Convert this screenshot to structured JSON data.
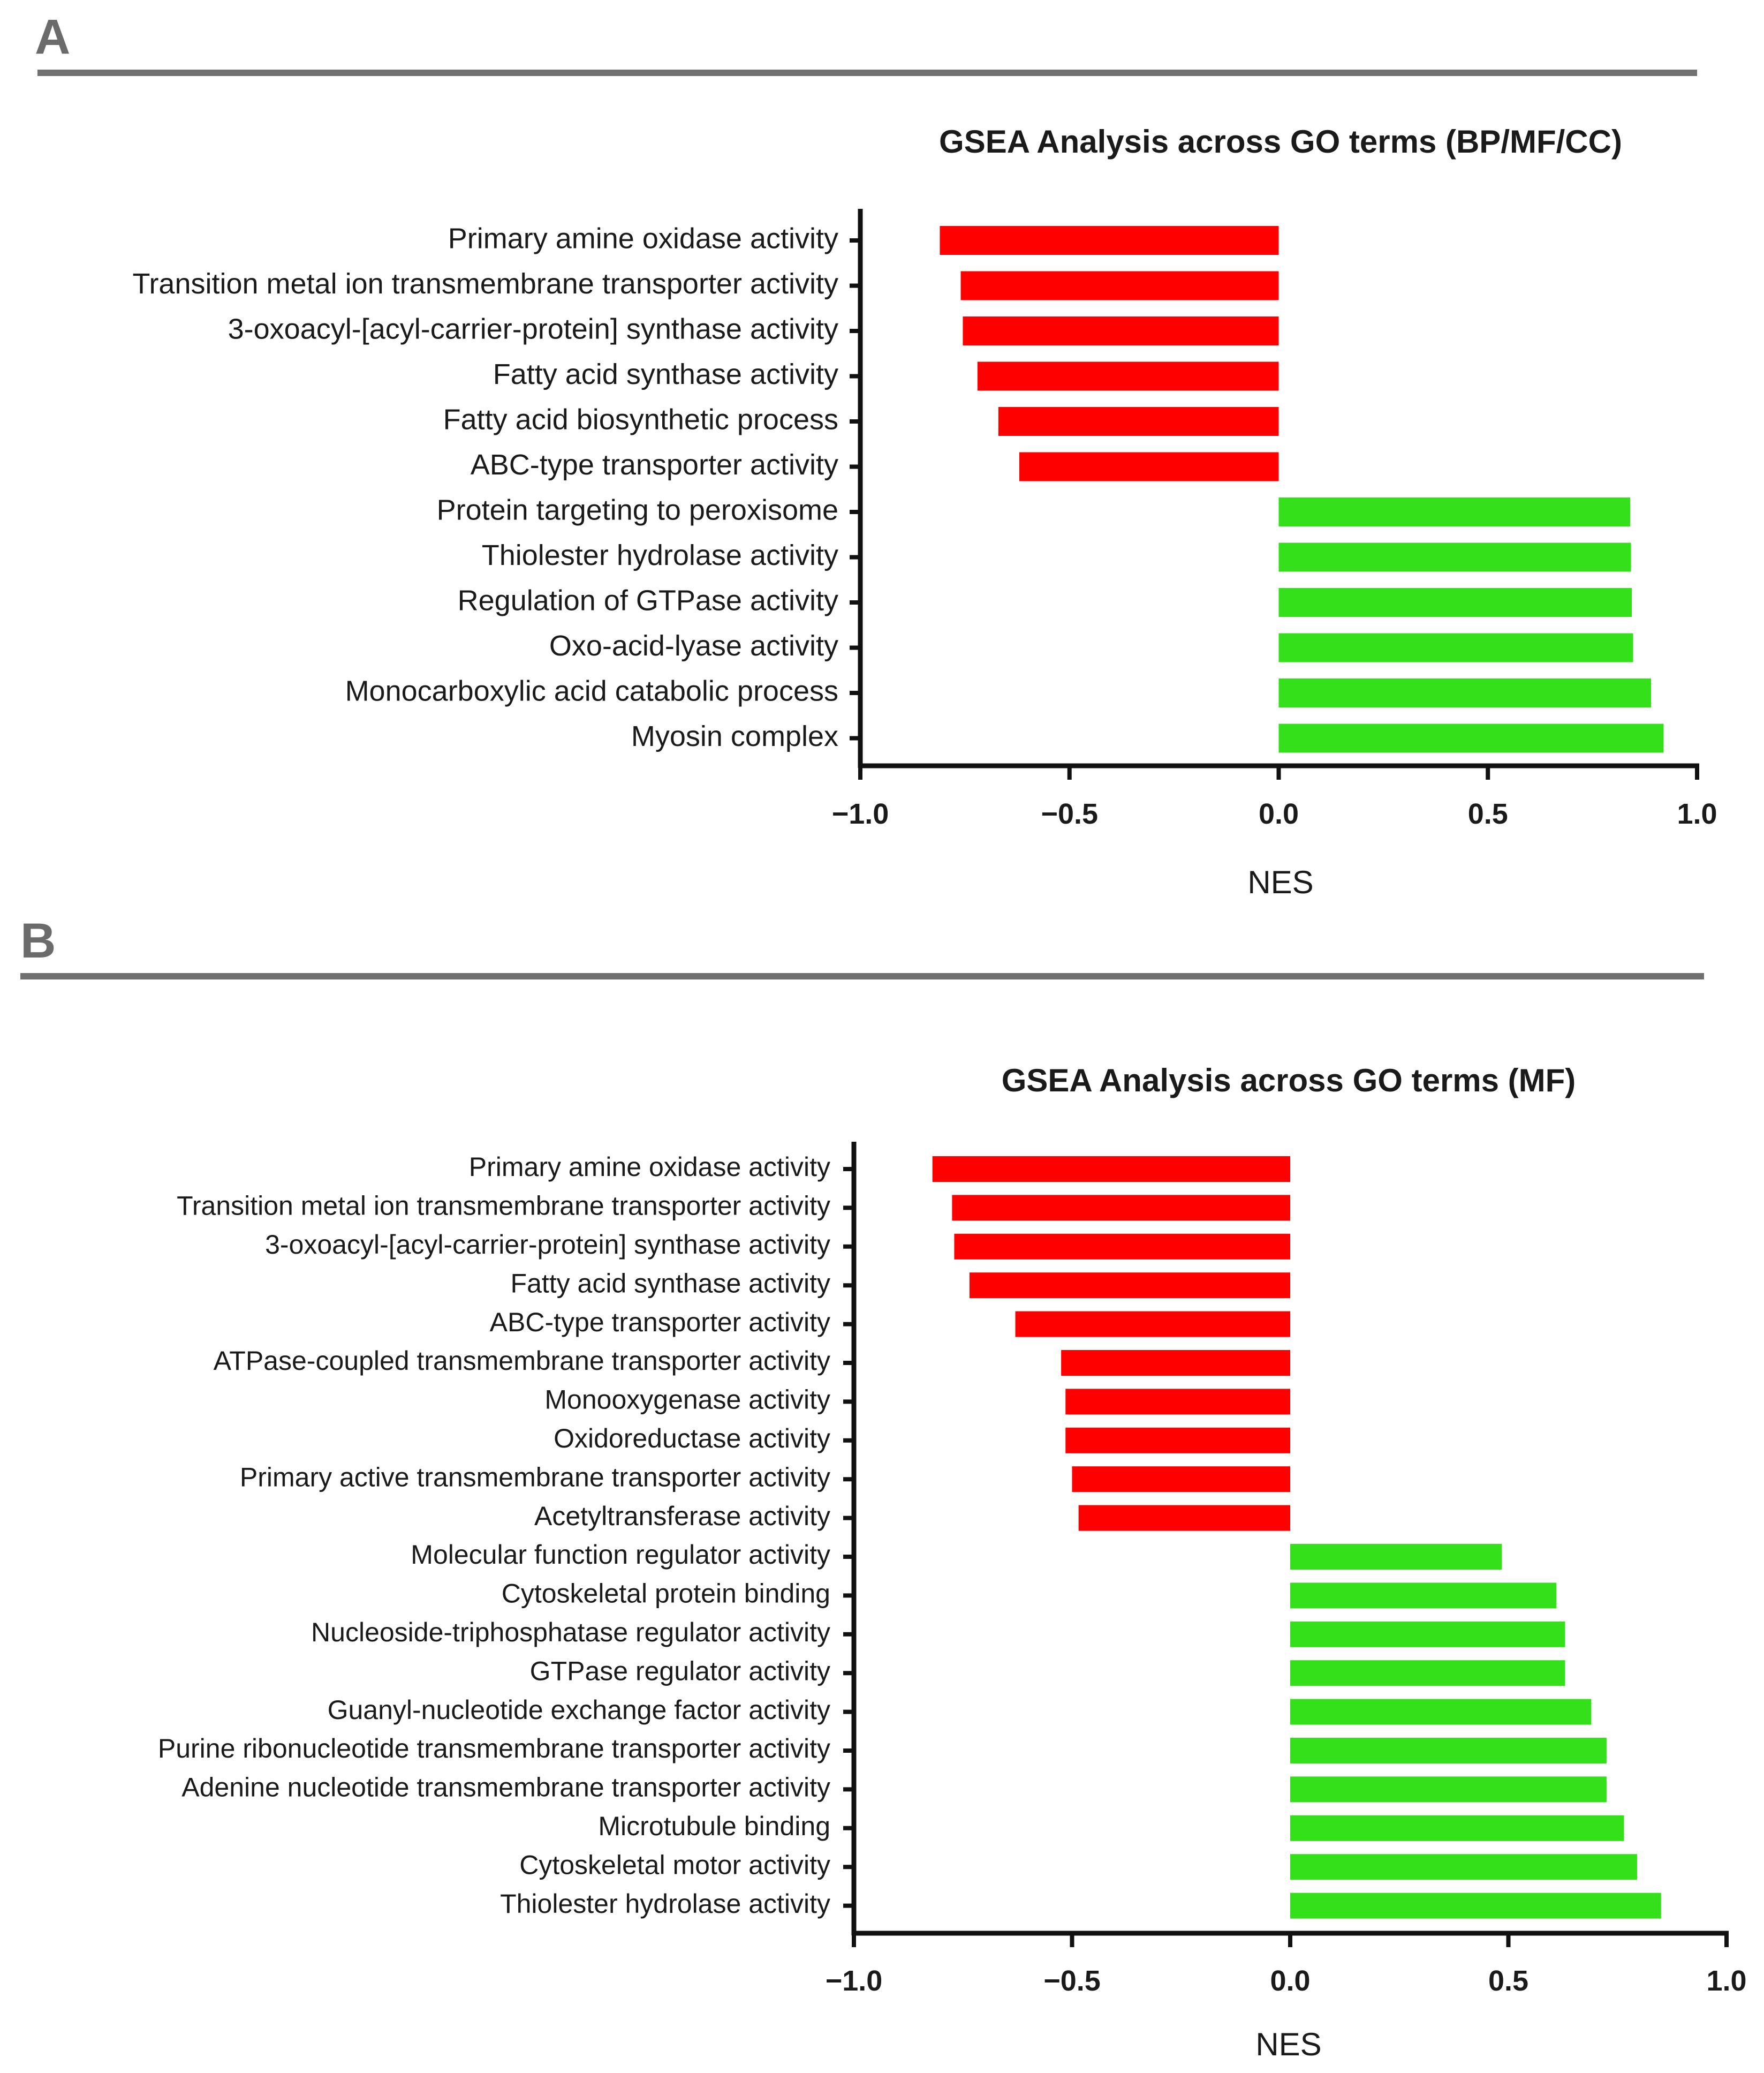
{
  "colors": {
    "negative": "#ff0000",
    "positive": "#33e01a",
    "rule": "#707070",
    "axis": "#111111"
  },
  "panels": [
    {
      "letter": "A"
    },
    {
      "letter": "B"
    }
  ],
  "chart_data": [
    {
      "type": "bar",
      "orientation": "horizontal",
      "title": "GSEA Analysis across GO terms (BP/MF/CC)",
      "xlabel": "NES",
      "ylabel": "",
      "xlim": [
        -1.0,
        1.0
      ],
      "xticks": [
        -1.0,
        -0.5,
        0.0,
        0.5,
        1.0
      ],
      "xtick_labels": [
        "−1.0",
        "−0.5",
        "0.0",
        "0.5",
        "1.0"
      ],
      "categories": [
        "Primary amine oxidase activity",
        "Transition metal ion transmembrane transporter activity",
        "3-oxoacyl-[acyl-carrier-protein] synthase activity",
        "Fatty acid synthase activity",
        "Fatty acid biosynthetic process",
        "ABC-type transporter activity",
        "Protein targeting to peroxisome",
        "Thiolester hydrolase activity",
        "Regulation of GTPase activity",
        "Oxo-acid-lyase activity",
        "Monocarboxylic acid catabolic process",
        "Myosin complex"
      ],
      "values": [
        -0.81,
        -0.76,
        -0.755,
        -0.72,
        -0.67,
        -0.62,
        0.84,
        0.842,
        0.844,
        0.847,
        0.89,
        0.92
      ]
    },
    {
      "type": "bar",
      "orientation": "horizontal",
      "title": "GSEA Analysis across GO terms (MF)",
      "xlabel": "NES",
      "ylabel": "",
      "xlim": [
        -1.0,
        1.0
      ],
      "xticks": [
        -1.0,
        -0.5,
        0.0,
        0.5,
        1.0
      ],
      "xtick_labels": [
        "−1.0",
        "−0.5",
        "0.0",
        "0.5",
        "1.0"
      ],
      "categories": [
        "Primary amine oxidase activity",
        "Transition metal ion transmembrane transporter activity",
        "3-oxoacyl-[acyl-carrier-protein] synthase activity",
        "Fatty acid synthase activity",
        "ABC-type transporter activity",
        "ATPase-coupled transmembrane transporter activity",
        "Monooxygenase activity",
        "Oxidoreductase activity",
        "Primary active transmembrane transporter activity",
        "Acetyltransferase activity",
        "Molecular function regulator activity",
        "Cytoskeletal protein binding",
        "Nucleoside-triphosphatase regulator activity",
        "GTPase regulator activity",
        "Guanyl-nucleotide exchange factor activity",
        "Purine ribonucleotide transmembrane transporter activity",
        "Adenine nucleotide transmembrane transporter activity",
        "Microtubule binding",
        "Cytoskeletal motor activity",
        "Thiolester hydrolase activity"
      ],
      "values": [
        -0.82,
        -0.775,
        -0.77,
        -0.735,
        -0.63,
        -0.525,
        -0.515,
        -0.515,
        -0.5,
        -0.485,
        0.485,
        0.61,
        0.63,
        0.63,
        0.69,
        0.725,
        0.725,
        0.765,
        0.795,
        0.85
      ]
    }
  ]
}
